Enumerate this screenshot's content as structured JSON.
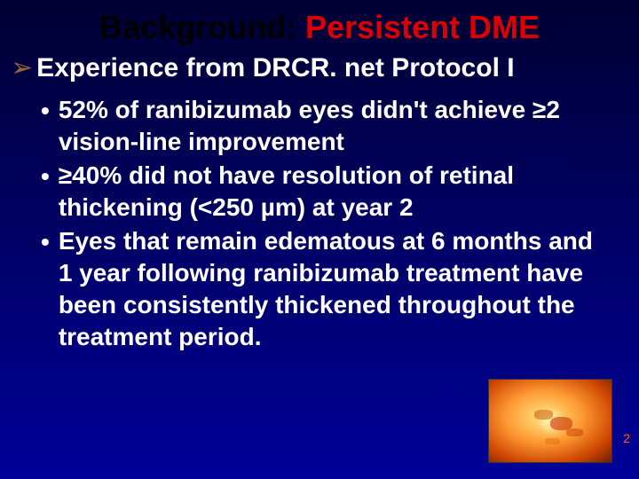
{
  "title": {
    "part1": "Background: ",
    "part2": "Persistent DME"
  },
  "subtitle": "Experience from DRCR. net Protocol I",
  "bullets": [
    "52% of ranibizumab eyes didn't achieve ≥2 vision-line improvement",
    "≥40% did not have resolution of retinal thickening (<250 µm) at year 2",
    "Eyes that remain edematous at 6 months and 1 year following ranibizumab treatment have been consistently thickened throughout the treatment period."
  ],
  "pageNumber": "2",
  "colors": {
    "titleBlack": "#000000",
    "titleRed": "#dd0000",
    "text": "#ffffff",
    "arrow": "#996633",
    "pageNum": "#ff6600"
  }
}
